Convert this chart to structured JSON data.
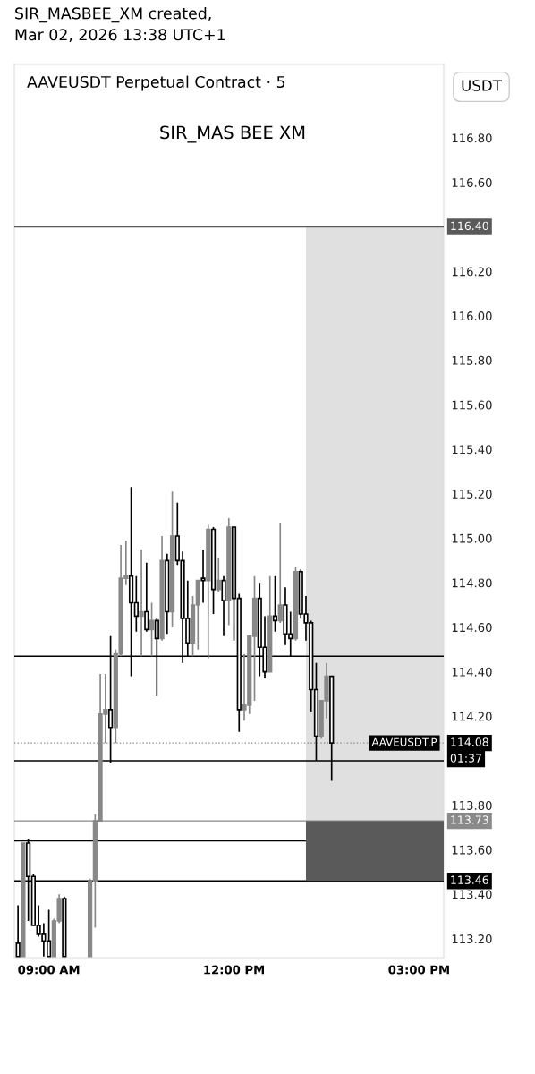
{
  "chart_data": {
    "type": "candlestick",
    "title": "AAVEUSDT Perpetual Contract · 5",
    "subtitle": "SIR_MAS BEE XM",
    "annotations": [
      "SIR_MASBEE_XM created,\nMar 02, 2026 13:38 UTC+1",
      "USDT",
      "AAVEUSDT.P",
      "01:37"
    ],
    "x": [
      8.5,
      8.5833,
      8.6667,
      8.75,
      8.8333,
      8.9167,
      9,
      9.0833,
      9.1667,
      9.25,
      9.6667,
      9.75,
      9.8333,
      9.9167,
      10,
      10.0833,
      10.1667,
      10.25,
      10.3333,
      10.4167,
      10.5,
      10.5833,
      10.6667,
      10.75,
      10.8333,
      10.9167,
      11,
      11.0833,
      11.1667,
      11.25,
      11.3333,
      11.4167,
      11.5,
      11.5833,
      11.6667,
      11.75,
      11.8333,
      11.9167,
      12,
      12.0833,
      12.1667,
      12.25,
      12.3333,
      12.4167,
      12.5,
      12.5833,
      12.6667,
      12.75,
      12.8333,
      12.9167,
      13,
      13.0833,
      13.1667,
      13.25,
      13.3333,
      13.4167,
      13.5,
      13.5833
    ],
    "ohlc": [
      [
        113.18,
        113.35,
        113.12,
        113.12
      ],
      [
        113.12,
        113.63,
        113.12,
        113.63
      ],
      [
        113.63,
        113.65,
        113.28,
        113.48
      ],
      [
        113.48,
        113.49,
        113.26,
        113.26
      ],
      [
        113.26,
        113.35,
        113.21,
        113.22
      ],
      [
        113.22,
        113.27,
        113.12,
        113.19
      ],
      [
        113.19,
        113.33,
        113.12,
        113.12
      ],
      [
        113.12,
        113.29,
        113.12,
        113.28
      ],
      [
        113.28,
        113.4,
        113.27,
        113.38
      ],
      [
        113.38,
        113.39,
        113.12,
        113.12
      ],
      [
        113.12,
        113.47,
        113.12,
        113.46
      ],
      [
        113.46,
        113.76,
        113.25,
        113.73
      ],
      [
        113.73,
        114.39,
        113.73,
        114.21
      ],
      [
        114.21,
        114.39,
        114.08,
        114.23
      ],
      [
        114.23,
        114.56,
        113.99,
        114.15
      ],
      [
        114.15,
        114.5,
        114.08,
        114.48
      ],
      [
        114.48,
        114.97,
        114.47,
        114.82
      ],
      [
        114.82,
        114.99,
        114.79,
        114.83
      ],
      [
        114.83,
        115.23,
        114.38,
        114.71
      ],
      [
        114.71,
        114.83,
        114.58,
        114.65
      ],
      [
        114.65,
        114.95,
        114.47,
        114.67
      ],
      [
        114.67,
        114.89,
        114.58,
        114.59
      ],
      [
        114.59,
        114.71,
        114.47,
        114.63
      ],
      [
        114.63,
        114.64,
        114.29,
        114.55
      ],
      [
        114.55,
        115.01,
        114.54,
        114.9
      ],
      [
        114.9,
        114.93,
        114.57,
        114.67
      ],
      [
        114.67,
        115.21,
        114.6,
        115.01
      ],
      [
        115.01,
        115.16,
        114.88,
        114.9
      ],
      [
        114.9,
        114.94,
        114.44,
        114.64
      ],
      [
        114.64,
        114.81,
        114.47,
        114.53
      ],
      [
        114.53,
        114.74,
        114.47,
        114.7
      ],
      [
        114.7,
        114.81,
        114.5,
        114.81
      ],
      [
        114.82,
        114.95,
        114.71,
        114.81
      ],
      [
        114.81,
        115.06,
        114.46,
        115.04
      ],
      [
        115.04,
        115.05,
        114.66,
        114.77
      ],
      [
        114.77,
        114.91,
        114.76,
        114.81
      ],
      [
        114.81,
        114.83,
        114.56,
        114.72
      ],
      [
        114.72,
        115.09,
        114.61,
        115.05
      ],
      [
        115.05,
        115.05,
        114.54,
        114.73
      ],
      [
        114.73,
        114.75,
        114.13,
        114.23
      ],
      [
        114.23,
        114.48,
        114.18,
        114.25
      ],
      [
        114.25,
        114.56,
        114.21,
        114.56
      ],
      [
        114.56,
        114.83,
        114.27,
        114.73
      ],
      [
        114.73,
        114.8,
        114.38,
        114.51
      ],
      [
        114.51,
        114.65,
        114.37,
        114.4
      ],
      [
        114.4,
        114.83,
        114.4,
        114.65
      ],
      [
        114.65,
        114.83,
        114.58,
        114.63
      ],
      [
        114.63,
        115.07,
        114.62,
        114.7
      ],
      [
        114.7,
        114.78,
        114.52,
        114.57
      ],
      [
        114.57,
        114.67,
        114.47,
        114.55
      ],
      [
        114.55,
        114.87,
        114.54,
        114.85
      ],
      [
        114.85,
        114.86,
        114.64,
        114.66
      ],
      [
        114.66,
        114.74,
        114.54,
        114.62
      ],
      [
        114.62,
        114.63,
        114.22,
        114.32
      ],
      [
        114.32,
        114.44,
        114.0,
        114.11
      ],
      [
        114.11,
        114.27,
        114.1,
        114.27
      ],
      [
        114.27,
        114.44,
        114.19,
        114.38
      ],
      [
        114.38,
        114.38,
        113.91,
        114.08
      ]
    ],
    "xlim": [
      8.44,
      15.4
    ],
    "ylim": [
      113.115,
      117.13
    ],
    "xticks": [
      {
        "value": 9,
        "label": "09:00 AM"
      },
      {
        "value": 12,
        "label": "12:00 PM"
      },
      {
        "value": 15,
        "label": "03:00 PM"
      }
    ],
    "yticks": [
      {
        "value": 113.2,
        "label": "113.20"
      },
      {
        "value": 113.4,
        "label": "113.40"
      },
      {
        "value": 113.6,
        "label": "113.60"
      },
      {
        "value": 113.8,
        "label": "113.80"
      },
      {
        "value": 114.2,
        "label": "114.20"
      },
      {
        "value": 114.4,
        "label": "114.40"
      },
      {
        "value": 114.6,
        "label": "114.60"
      },
      {
        "value": 114.8,
        "label": "114.80"
      },
      {
        "value": 115.0,
        "label": "115.00"
      },
      {
        "value": 115.2,
        "label": "115.20"
      },
      {
        "value": 115.4,
        "label": "115.40"
      },
      {
        "value": 115.6,
        "label": "115.60"
      },
      {
        "value": 115.8,
        "label": "115.80"
      },
      {
        "value": 116.0,
        "label": "116.00"
      },
      {
        "value": 116.2,
        "label": "116.20"
      },
      {
        "value": 116.6,
        "label": "116.60"
      },
      {
        "value": 116.8,
        "label": "116.80"
      }
    ],
    "bands": [
      {
        "axis": "y",
        "from": 113.73,
        "to": 116.4,
        "color": "#e0e0e0"
      },
      {
        "axis": "y",
        "from": 113.46,
        "to": 113.73,
        "color": "#5a5a5a"
      }
    ],
    "ref_lines": [
      {
        "axis": "y",
        "value": 116.4,
        "label": "116.40",
        "color": "#5a5a5a"
      },
      {
        "axis": "y",
        "value": 113.73,
        "label": "113.73",
        "color": "#8a8a8a"
      },
      {
        "axis": "y",
        "value": 113.46,
        "label": "113.46",
        "color": "#000000"
      },
      {
        "axis": "y",
        "value": 114.08,
        "label": "114.08",
        "color": "#888888",
        "line_style": "dotted"
      },
      {
        "axis": "y",
        "value": 113.64,
        "label": null,
        "color": "#000000"
      },
      {
        "axis": "y",
        "value": 114.47,
        "label": null,
        "color": "#000000"
      },
      {
        "axis": "y",
        "value": 114.0,
        "label": null,
        "color": "#000000"
      }
    ],
    "grid": false
  }
}
